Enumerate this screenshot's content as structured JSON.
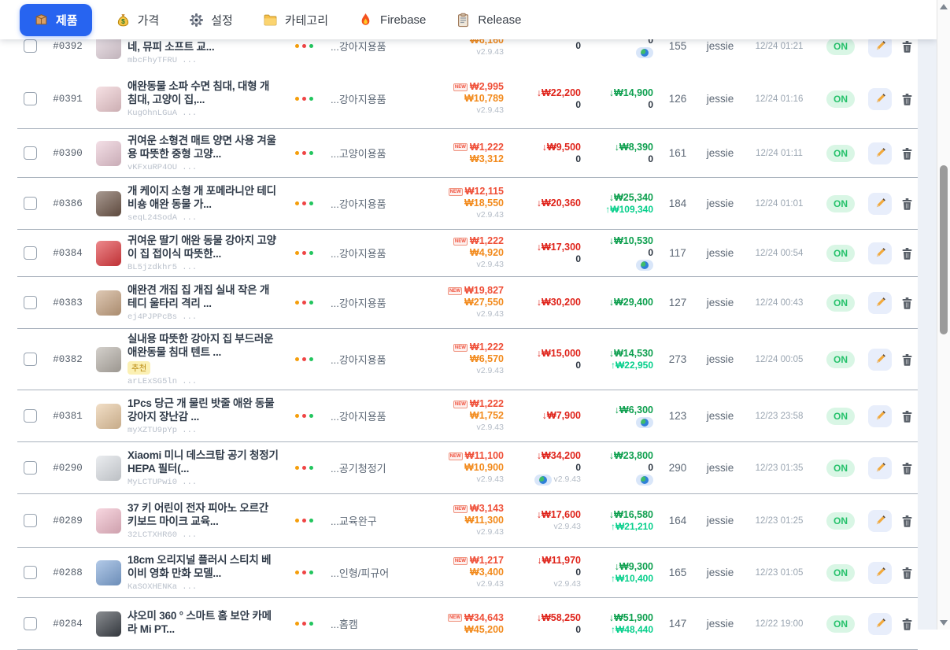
{
  "nav": {
    "items": [
      {
        "label": "제품",
        "icon": "package-icon",
        "active": true
      },
      {
        "label": "가격",
        "icon": "money-bag-icon",
        "active": false
      },
      {
        "label": "설정",
        "icon": "gear-icon",
        "active": false
      },
      {
        "label": "카테고리",
        "icon": "folder-icon",
        "active": false
      },
      {
        "label": "Firebase",
        "icon": "flame-icon",
        "active": false
      },
      {
        "label": "Release",
        "icon": "clipboard-icon",
        "active": false
      }
    ]
  },
  "table": {
    "rows": [
      {
        "id": "#0392",
        "title": "네, 뮤피 소프트 교...",
        "badge": "",
        "code": "mbcFhyTFRU ...",
        "category": "...강아지용품",
        "thumb_color": "#e3d3dc",
        "p1": {
          "new": false,
          "top": "",
          "mid": "₩6,160",
          "ver": "v2.9.43"
        },
        "p2": {
          "top": "",
          "mid": "0",
          "ver": "",
          "globe": false
        },
        "p3": {
          "top": "",
          "mid": "0",
          "ver": "",
          "globe": true
        },
        "count": "155",
        "user": "jessie",
        "date": "12/24 01:21",
        "status": "ON"
      },
      {
        "id": "#0391",
        "title": "애완동물 소파 수면 침대, 대형 개 침대, 고양이 집,...",
        "badge": "",
        "code": "KugOhnLGuA ...",
        "category": "...강아지용품",
        "thumb_color": "#f0cdd2",
        "p1": {
          "new": true,
          "top": "₩2,995",
          "mid": "₩10,789",
          "ver": "v2.9.43"
        },
        "p2": {
          "top": "↓₩22,200",
          "mid": "0",
          "ver": "",
          "globe": false
        },
        "p3": {
          "top": "↓₩14,900",
          "mid": "0",
          "ver": "",
          "globe": false
        },
        "count": "126",
        "user": "jessie",
        "date": "12/24 01:16",
        "status": "ON"
      },
      {
        "id": "#0390",
        "title": "귀여운 소형견 매트 양면 사용 겨울용 따뜻한 중형 고양...",
        "badge": "",
        "code": "vKFxuRP4OU ...",
        "category": "...고양이용품",
        "thumb_color": "#eccad6",
        "p1": {
          "new": true,
          "top": "₩1,222",
          "mid": "₩3,312",
          "ver": ""
        },
        "p2": {
          "top": "↓₩9,500",
          "mid": "0",
          "ver": "",
          "globe": false
        },
        "p3": {
          "top": "↓₩8,390",
          "mid": "0",
          "ver": "",
          "globe": false
        },
        "count": "161",
        "user": "jessie",
        "date": "12/24 01:11",
        "status": "ON"
      },
      {
        "id": "#0386",
        "title": "개 케이지 소형 개 포메라니안 테디 비숑 애완 동물 가...",
        "badge": "",
        "code": "seqL24SodA ...",
        "category": "...강아지용품",
        "thumb_color": "#6e5648",
        "p1": {
          "new": true,
          "top": "₩12,115",
          "mid": "₩18,550",
          "ver": "v2.9.43"
        },
        "p2": {
          "top": "↓₩20,360",
          "mid": "",
          "ver": "",
          "globe": false
        },
        "p3": {
          "top": "↓₩25,340",
          "mid": "↑₩109,340",
          "ver": "",
          "globe": false
        },
        "count": "184",
        "user": "jessie",
        "date": "12/24 01:01",
        "status": "ON"
      },
      {
        "id": "#0384",
        "title": "귀여운 딸기 애완 동물 강아지 고양이 집 접이식 따뜻한...",
        "badge": "",
        "code": "BL5jzdkhr5 ...",
        "category": "...강아지용품",
        "thumb_color": "#e03a3f",
        "p1": {
          "new": true,
          "top": "₩1,222",
          "mid": "₩4,920",
          "ver": "v2.9.43"
        },
        "p2": {
          "top": "↓₩17,300",
          "mid": "0",
          "ver": "",
          "globe": false
        },
        "p3": {
          "top": "↓₩10,530",
          "mid": "0",
          "ver": "",
          "globe": true
        },
        "count": "117",
        "user": "jessie",
        "date": "12/24 00:54",
        "status": "ON"
      },
      {
        "id": "#0383",
        "title": "애완견 개집 집 개집 실내 작은 개 테디 울타리 격리 ...",
        "badge": "",
        "code": "ej4PJPPcBs ...",
        "category": "...강아지용품",
        "thumb_color": "#c8a482",
        "p1": {
          "new": true,
          "top": "₩19,827",
          "mid": "₩27,550",
          "ver": "v2.9.43"
        },
        "p2": {
          "top": "↓₩30,200",
          "mid": "",
          "ver": "",
          "globe": false
        },
        "p3": {
          "top": "↓₩29,400",
          "mid": "",
          "ver": "",
          "globe": false
        },
        "count": "127",
        "user": "jessie",
        "date": "12/24 00:43",
        "status": "ON"
      },
      {
        "id": "#0382",
        "title": "실내용 따뜻한 강아지 집 부드러운 애완동물 침대 텐트 ...",
        "badge": "추천",
        "code": "arLExSG5ln ...",
        "category": "...강아지용품",
        "thumb_color": "#b7b1a9",
        "p1": {
          "new": true,
          "top": "₩1,222",
          "mid": "₩6,570",
          "ver": "v2.9.43"
        },
        "p2": {
          "top": "↓₩15,000",
          "mid": "0",
          "ver": "",
          "globe": false
        },
        "p3": {
          "top": "↓₩14,530",
          "mid": "↑₩22,950",
          "ver": "",
          "globe": false
        },
        "count": "273",
        "user": "jessie",
        "date": "12/24 00:05",
        "status": "ON"
      },
      {
        "id": "#0381",
        "title": "1Pcs 당근 개 물린 밧줄 애완 동물 강아지 장난감 ...",
        "badge": "",
        "code": "myXZTU9pYp ...",
        "category": "...강아지용품",
        "thumb_color": "#e9c9a1",
        "p1": {
          "new": true,
          "top": "₩1,222",
          "mid": "₩1,752",
          "ver": "v2.9.43"
        },
        "p2": {
          "top": "↓₩7,900",
          "mid": "",
          "ver": "",
          "globe": false
        },
        "p3": {
          "top": "↓₩6,300",
          "mid": "",
          "ver": "",
          "globe": true
        },
        "count": "123",
        "user": "jessie",
        "date": "12/23 23:58",
        "status": "ON"
      },
      {
        "id": "#0290",
        "title": "Xiaomi 미니 데스크탑 공기 청정기 HEPA 필터(...",
        "badge": "",
        "code": "MyLCTUPwi0 ...",
        "category": "...공기청정기",
        "thumb_color": "#dde1e6",
        "p1": {
          "new": true,
          "top": "₩11,100",
          "mid": "₩10,900",
          "ver": "v2.9.43"
        },
        "p2": {
          "top": "↓₩34,200",
          "mid": "0",
          "ver": "v2.9.43",
          "globe": true
        },
        "p3": {
          "top": "↓₩23,800",
          "mid": "0",
          "ver": "",
          "globe": true
        },
        "count": "290",
        "user": "jessie",
        "date": "12/23 01:35",
        "status": "ON"
      },
      {
        "id": "#0289",
        "title": "37 키 어린이 전자 피아노 오르간 키보드 마이크 교육...",
        "badge": "",
        "code": "32LCTXHR60 ...",
        "category": "...교육완구",
        "thumb_color": "#f2bccb",
        "p1": {
          "new": true,
          "top": "₩3,143",
          "mid": "₩11,300",
          "ver": "v2.9.43"
        },
        "p2": {
          "top": "↓₩17,600",
          "mid": "",
          "ver": "v2.9.43",
          "globe": false
        },
        "p3": {
          "top": "↓₩16,580",
          "mid": "↑₩21,210",
          "ver": "",
          "globe": false
        },
        "count": "164",
        "user": "jessie",
        "date": "12/23 01:25",
        "status": "ON"
      },
      {
        "id": "#0288",
        "title": "18cm 오리지널 플러시 스티치 베이비 영화 만화 모델...",
        "badge": "",
        "code": "KaSOXHENKa ...",
        "category": "...인형/피규어",
        "thumb_color": "#7fa6d8",
        "p1": {
          "new": true,
          "top": "₩1,217",
          "mid": "₩3,400",
          "ver": "v2.9.43"
        },
        "p2": {
          "top": "↓₩11,970",
          "mid": "0",
          "ver": "v2.9.43",
          "globe": false
        },
        "p3": {
          "top": "↓₩9,300",
          "mid": "↑₩10,400",
          "ver": "",
          "globe": false
        },
        "count": "165",
        "user": "jessie",
        "date": "12/23 01:05",
        "status": "ON"
      },
      {
        "id": "#0284",
        "title": "샤오미 360 ° 스마트 홈 보안 카메라 Mi PT...",
        "badge": "",
        "code": "",
        "category": "...홈캠",
        "thumb_color": "#3c4148",
        "p1": {
          "new": true,
          "top": "₩34,643",
          "mid": "₩45,200",
          "ver": ""
        },
        "p2": {
          "top": "↓₩58,250",
          "mid": "0",
          "ver": "",
          "globe": false
        },
        "p3": {
          "top": "↓₩51,900",
          "mid": "↑₩48,440",
          "ver": "",
          "globe": false
        },
        "count": "147",
        "user": "jessie",
        "date": "12/22 19:00",
        "status": "ON"
      }
    ]
  }
}
